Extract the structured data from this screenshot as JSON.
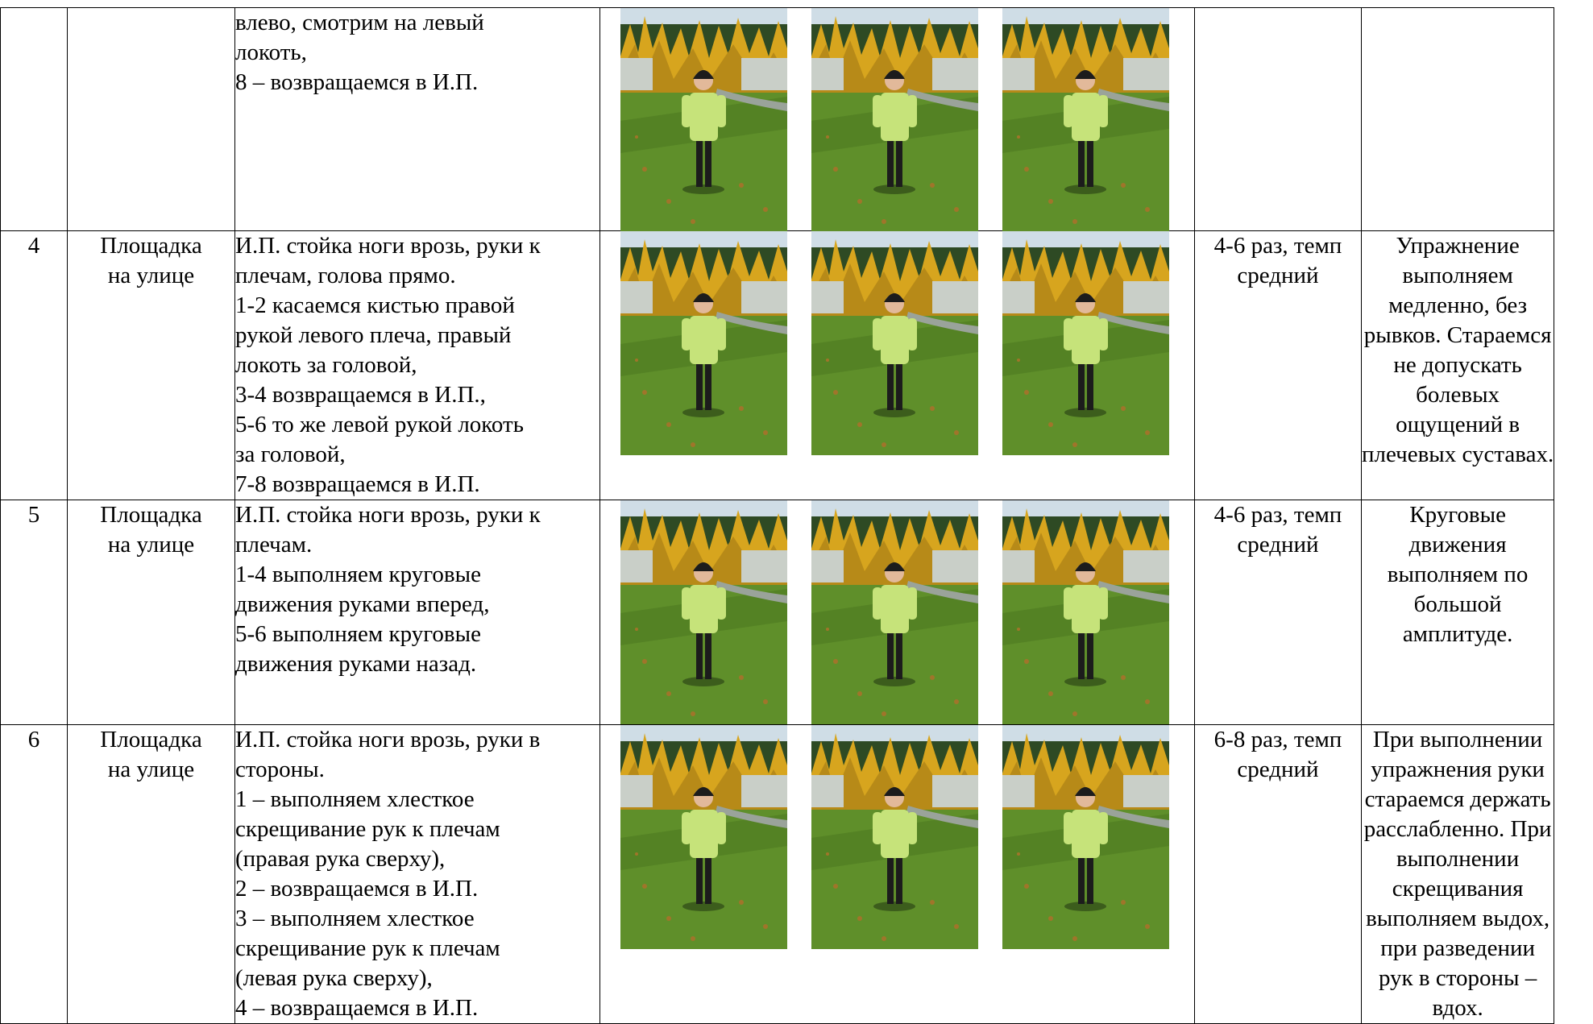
{
  "rows": [
    {
      "num": "",
      "place": [],
      "description": [
        "влево, смотрим на левый",
        "локоть,",
        "8 – возвращаемся в И.П."
      ],
      "photos": [
        "exercise-photo",
        "exercise-photo",
        "exercise-photo"
      ],
      "dosage": [],
      "notes": []
    },
    {
      "num": "4",
      "place": [
        "Площадка",
        "на улице"
      ],
      "description": [
        "И.П. стойка ноги врозь, руки к",
        "плечам, голова прямо.",
        "1-2 касаемся кистью правой",
        "рукой левого плеча, правый",
        "локоть за головой,",
        "3-4 возвращаемся в И.П.,",
        "5-6 то же левой рукой локоть",
        "за головой,",
        "7-8 возвращаемся в И.П."
      ],
      "photos": [
        "exercise-photo",
        "exercise-photo",
        "exercise-photo"
      ],
      "dosage": [
        "4-6 раз, темп",
        "средний"
      ],
      "notes": [
        "Упражнение",
        "выполняем",
        "медленно, без",
        "рывков. Стараемся",
        "не допускать",
        "болевых",
        "ощущений в",
        "плечевых суставах."
      ]
    },
    {
      "num": "5",
      "place": [
        "Площадка",
        "на улице"
      ],
      "description": [
        "И.П. стойка ноги врозь, руки к",
        "плечам.",
        "1-4 выполняем круговые",
        "движения руками вперед,",
        "5-6 выполняем круговые",
        "движения руками назад."
      ],
      "photos": [
        "exercise-photo",
        "exercise-photo",
        "exercise-photo"
      ],
      "dosage": [
        "4-6 раз, темп",
        "средний"
      ],
      "notes": [
        "Круговые",
        "движения",
        "выполняем по",
        "большой",
        "амплитуде."
      ]
    },
    {
      "num": "6",
      "place": [
        "Площадка",
        "на улице"
      ],
      "description": [
        "И.П. стойка ноги врозь, руки в",
        "стороны.",
        "1 – выполняем хлесткое",
        "скрещивание рук к плечам",
        "(правая рука сверху),",
        "2 – возвращаемся в И.П.",
        "3 – выполняем хлесткое",
        "скрещивание рук к плечам",
        "(левая рука сверху),",
        "4 – возвращаемся в И.П."
      ],
      "photos": [
        "exercise-photo",
        "exercise-photo",
        "exercise-photo"
      ],
      "dosage": [
        "6-8 раз, темп",
        "средний"
      ],
      "notes": [
        "При выполнении",
        "упражнения руки",
        "стараемся держать",
        "расслабленно. При",
        "выполнении",
        "скрещивания",
        "выполняем выдох,",
        "при разведении",
        "рук в стороны –",
        "вдох."
      ]
    }
  ],
  "colors": {
    "grass": "#5f8f2a",
    "trees": "#d7a51e",
    "sky": "#cfdde6",
    "jacket": "#c6e37a"
  }
}
